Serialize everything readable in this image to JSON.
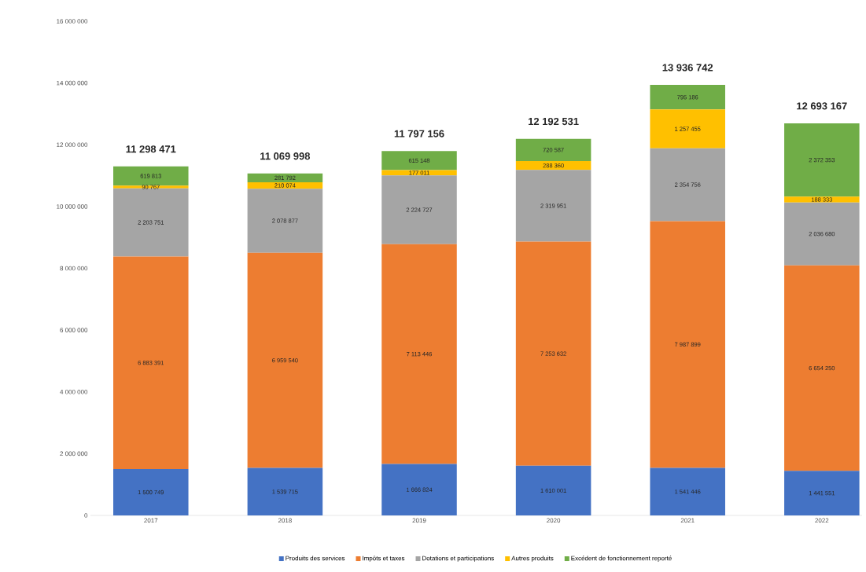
{
  "chart_data": {
    "type": "bar",
    "stacked": true,
    "categories": [
      "2017",
      "2018",
      "2019",
      "2020",
      "2021",
      "2022"
    ],
    "series": [
      {
        "name": "Produits des services",
        "color": "#4472c4",
        "values": [
          1500749,
          1539715,
          1666824,
          1610001,
          1541446,
          1441551
        ]
      },
      {
        "name": "Impôts et taxes",
        "color": "#ed7d31",
        "values": [
          6883391,
          6959540,
          7113446,
          7253632,
          7987899,
          6654250
        ]
      },
      {
        "name": "Dotations et participations",
        "color": "#a5a5a5",
        "values": [
          2203751,
          2078877,
          2224727,
          2319951,
          2354756,
          2036680
        ]
      },
      {
        "name": "Autres produits",
        "color": "#ffc000",
        "values": [
          90767,
          210074,
          177011,
          288360,
          1257455,
          188333
        ]
      },
      {
        "name": "Excédent de fonctionnement reporté",
        "color": "#70ad47",
        "values": [
          619813,
          281792,
          615148,
          720587,
          795186,
          2372353
        ]
      }
    ],
    "totals": [
      "11 298 471",
      "11 069 998",
      "11 797 156",
      "12 192 531",
      "13 936 742",
      "12 693 167"
    ],
    "data_labels": true,
    "ylim": [
      0,
      16000000
    ],
    "yticks": [
      {
        "value": 0,
        "label": "0"
      },
      {
        "value": 2000000,
        "label": "2 000 000"
      },
      {
        "value": 4000000,
        "label": "4 000 000"
      },
      {
        "value": 6000000,
        "label": "6 000 000"
      },
      {
        "value": 8000000,
        "label": "8 000 000"
      },
      {
        "value": 10000000,
        "label": "10 000 000"
      },
      {
        "value": 12000000,
        "label": "12 000 000"
      },
      {
        "value": 14000000,
        "label": "14 000 000"
      },
      {
        "value": 16000000,
        "label": "16 000 000"
      }
    ],
    "grid": false,
    "legend": "bottom"
  }
}
